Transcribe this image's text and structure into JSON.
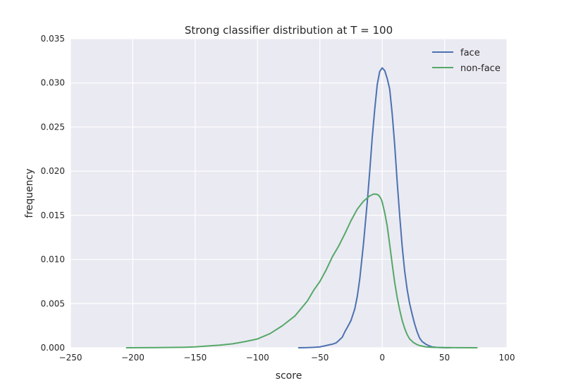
{
  "chart_data": {
    "type": "line",
    "title": "Strong classifier distribution at T = 100",
    "xlabel": "score",
    "ylabel": "frequency",
    "xlim": [
      -250,
      100
    ],
    "ylim": [
      0,
      0.035
    ],
    "x_ticks": [
      -250,
      -200,
      -150,
      -100,
      -50,
      0,
      50,
      100
    ],
    "x_tick_labels": [
      "−250",
      "−200",
      "−150",
      "−100",
      "−50",
      "0",
      "50",
      "100"
    ],
    "y_ticks": [
      0,
      0.005,
      0.01,
      0.015,
      0.02,
      0.025,
      0.03,
      0.035
    ],
    "y_tick_labels": [
      "0.000",
      "0.005",
      "0.010",
      "0.015",
      "0.020",
      "0.025",
      "0.030",
      "0.035"
    ],
    "grid": true,
    "legend_position": "top-right",
    "background_color": "#eaeaf2",
    "series": [
      {
        "name": "face",
        "color": "#4c72b0",
        "x": [
          -67,
          -60,
          -55,
          -50,
          -45,
          -42,
          -40,
          -37,
          -35,
          -32,
          -30,
          -28,
          -25,
          -22,
          -20,
          -18,
          -15,
          -12,
          -10,
          -8,
          -6,
          -4,
          -2,
          0,
          2,
          4,
          6,
          8,
          10,
          12,
          14,
          16,
          18,
          20,
          22,
          24,
          26,
          28,
          30,
          32,
          35,
          38,
          40,
          45,
          50,
          55
        ],
        "y": [
          0.0,
          2e-05,
          5e-05,
          0.0001,
          0.00025,
          0.00035,
          0.0004,
          0.00055,
          0.0008,
          0.0012,
          0.0018,
          0.0023,
          0.0031,
          0.0044,
          0.0058,
          0.0078,
          0.0118,
          0.0165,
          0.02,
          0.0238,
          0.027,
          0.0298,
          0.0313,
          0.0317,
          0.0314,
          0.0305,
          0.0293,
          0.0265,
          0.023,
          0.0188,
          0.015,
          0.0115,
          0.0087,
          0.0066,
          0.005,
          0.0038,
          0.0027,
          0.0018,
          0.0011,
          0.0007,
          0.0004,
          0.0002,
          0.0001,
          3e-05,
          1e-05,
          0.0
        ]
      },
      {
        "name": "non-face",
        "color": "#55a868",
        "x": [
          -205,
          -180,
          -160,
          -150,
          -140,
          -130,
          -120,
          -110,
          -100,
          -90,
          -80,
          -70,
          -60,
          -55,
          -50,
          -45,
          -40,
          -35,
          -30,
          -25,
          -20,
          -15,
          -10,
          -7,
          -5,
          -3,
          -1,
          0,
          2,
          4,
          6,
          8,
          10,
          12,
          14,
          16,
          18,
          20,
          22,
          25,
          28,
          30,
          35,
          40,
          50,
          60,
          76
        ],
        "y": [
          0.0,
          2e-05,
          5e-05,
          0.0001,
          0.0002,
          0.0003,
          0.00045,
          0.0007,
          0.001,
          0.0016,
          0.0025,
          0.0036,
          0.0053,
          0.0065,
          0.0075,
          0.0088,
          0.0103,
          0.0115,
          0.0129,
          0.0144,
          0.0157,
          0.0166,
          0.0172,
          0.0174,
          0.0174,
          0.0173,
          0.0169,
          0.0165,
          0.0153,
          0.0138,
          0.0117,
          0.0095,
          0.0074,
          0.0057,
          0.0043,
          0.0031,
          0.0022,
          0.0015,
          0.001,
          0.0006,
          0.00035,
          0.00025,
          0.0001,
          5e-05,
          2e-05,
          1e-05,
          0.0
        ]
      }
    ]
  }
}
